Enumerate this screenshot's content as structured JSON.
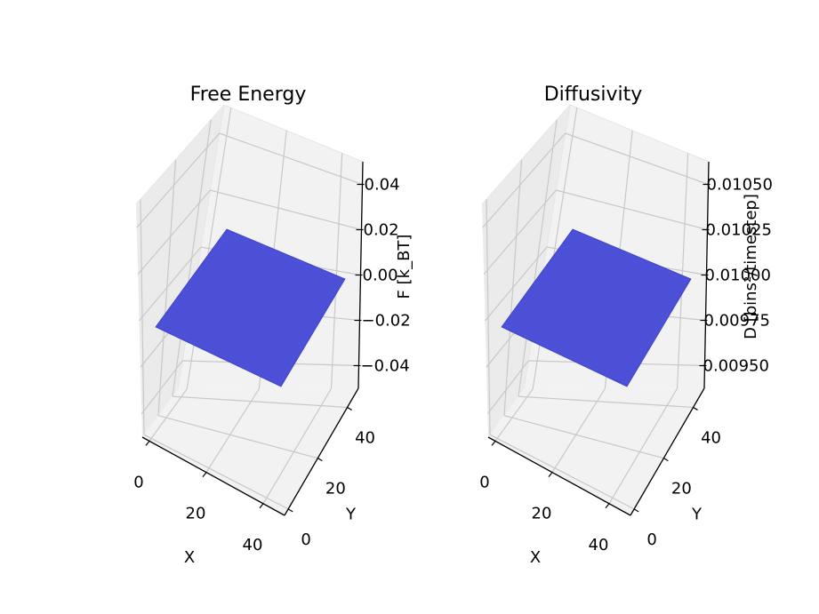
{
  "chart_data": [
    {
      "type": "surface3d",
      "title": "Free Energy",
      "xlabel": "X",
      "ylabel": "Y",
      "zlabel": "F [k_BT]",
      "x_range": [
        0,
        49
      ],
      "y_range": [
        0,
        49
      ],
      "x_ticks": [
        "0",
        "20",
        "40"
      ],
      "y_ticks": [
        "0",
        "20",
        "40"
      ],
      "z_ticks": [
        "−0.04",
        "−0.02",
        "0.00",
        "0.02",
        "0.04"
      ],
      "zlim": [
        -0.05,
        0.05
      ],
      "surface_value": 0.0,
      "surface_color": "#4B4FD6",
      "grid": true
    },
    {
      "type": "surface3d",
      "title": "Diffusivity",
      "xlabel": "X",
      "ylabel": "Y",
      "zlabel": "D [bins²/timestep]",
      "x_range": [
        0,
        49
      ],
      "y_range": [
        0,
        49
      ],
      "x_ticks": [
        "0",
        "20",
        "40"
      ],
      "y_ticks": [
        "0",
        "20",
        "40"
      ],
      "z_ticks": [
        "0.00950",
        "0.00975",
        "0.01000",
        "0.01025",
        "0.01050"
      ],
      "zlim": [
        0.0095,
        0.0105
      ],
      "surface_value": 0.01,
      "surface_color": "#4B4FD6",
      "grid": true
    }
  ],
  "colors": {
    "pane": "#F2F2F2",
    "pane_side": "#EBEBEB",
    "grid": "#C8C8C8",
    "axis": "#000000"
  }
}
